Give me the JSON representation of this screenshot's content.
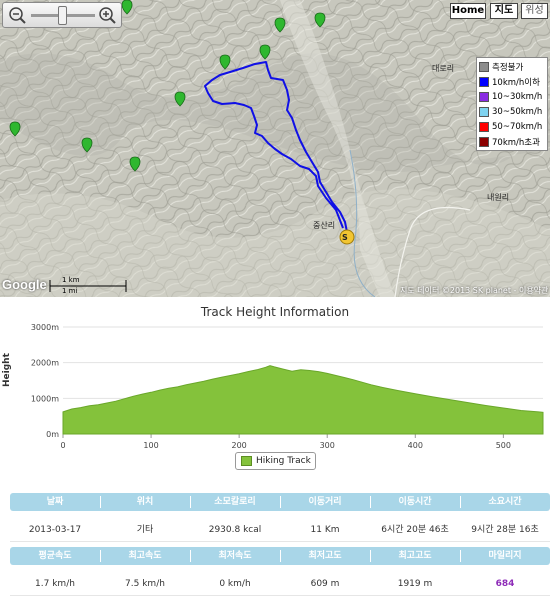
{
  "map": {
    "buttons": {
      "home": "Home",
      "map": "지도",
      "satellite": "위성"
    },
    "legend": [
      {
        "label": "측정불가",
        "color": "#8c8c8c"
      },
      {
        "label": "10km/h이하",
        "color": "#0000ff"
      },
      {
        "label": "10~30km/h",
        "color": "#8a2be2"
      },
      {
        "label": "30~50km/h",
        "color": "#7fd3f0"
      },
      {
        "label": "50~70km/h",
        "color": "#ff0000"
      },
      {
        "label": "70km/h초과",
        "color": "#8b0000"
      }
    ],
    "place_labels": {
      "start": "중산리",
      "right_top": "대로리",
      "right_bottom": "내원리"
    },
    "start_marker": "S",
    "copyright": "지도 데이터 ©2013 SK planet - 이용약관",
    "google": "Google",
    "scale_km": "1 km",
    "scale_mi": "1 mi"
  },
  "chart_data": {
    "type": "area",
    "title": "Track Height Information",
    "ylabel": "Height",
    "xlabel": "",
    "ylim": [
      0,
      3000
    ],
    "xlim": [
      0,
      545
    ],
    "y_ticks": [
      "0m",
      "1000m",
      "2000m",
      "3000m"
    ],
    "x_ticks": [
      "0",
      "100",
      "200",
      "300",
      "400",
      "500"
    ],
    "series": [
      {
        "name": "Hiking Track",
        "color": "#84c23b",
        "x": [
          0,
          10,
          20,
          30,
          40,
          50,
          60,
          70,
          80,
          90,
          100,
          110,
          120,
          130,
          140,
          150,
          160,
          170,
          180,
          190,
          200,
          210,
          220,
          230,
          235,
          240,
          250,
          260,
          270,
          280,
          290,
          300,
          310,
          320,
          330,
          340,
          350,
          360,
          380,
          400,
          420,
          440,
          460,
          480,
          500,
          520,
          540,
          545
        ],
        "y": [
          620,
          700,
          740,
          790,
          820,
          870,
          920,
          990,
          1060,
          1120,
          1170,
          1230,
          1280,
          1320,
          1380,
          1430,
          1480,
          1540,
          1590,
          1640,
          1690,
          1750,
          1800,
          1870,
          1919,
          1880,
          1820,
          1760,
          1800,
          1780,
          1750,
          1700,
          1640,
          1580,
          1520,
          1450,
          1380,
          1320,
          1220,
          1130,
          1040,
          960,
          880,
          800,
          730,
          660,
          620,
          609
        ]
      }
    ],
    "legend": "bottom"
  },
  "stats": {
    "headers1": [
      "날짜",
      "위치",
      "소모칼로리",
      "이동거리",
      "이동시간",
      "소요시간"
    ],
    "values1": [
      "2013-03-17",
      "기타",
      "2930.8 kcal",
      "11 Km",
      "6시간 20분 46초",
      "9시간 28분 16초"
    ],
    "headers2": [
      "평균속도",
      "최고속도",
      "최저속도",
      "최저고도",
      "최고고도",
      "마일리지"
    ],
    "values2": [
      "1.7 km/h",
      "7.5 km/h",
      "0 km/h",
      "609 m",
      "1919 m",
      "684"
    ]
  }
}
